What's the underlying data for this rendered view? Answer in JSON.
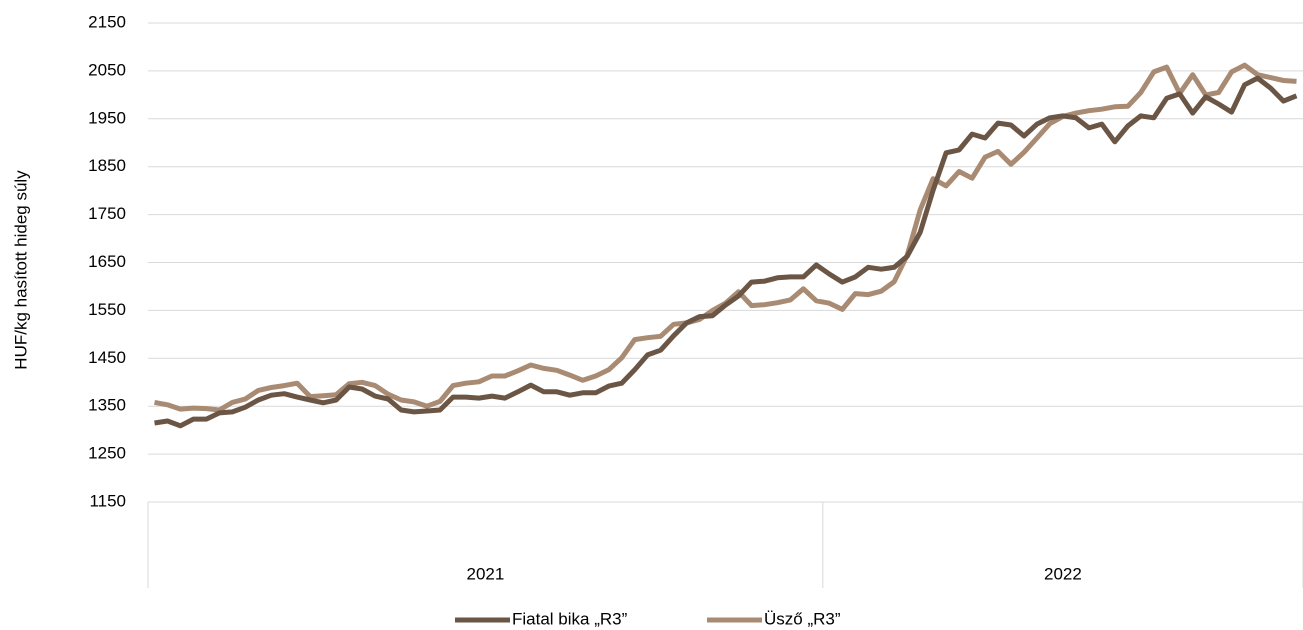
{
  "chart_data": {
    "type": "line",
    "y_label": "HUF/kg hasított hideg súly",
    "categories": [
      null,
      null,
      null,
      null,
      null,
      null,
      null,
      null,
      null,
      null,
      null,
      null,
      null,
      null,
      null,
      null,
      null,
      null,
      null,
      null,
      null,
      null,
      null,
      null,
      null,
      null,
      null,
      null,
      null,
      null,
      null,
      null,
      null,
      null,
      null,
      null,
      null,
      null,
      null,
      null,
      null,
      null,
      null,
      null,
      null,
      null,
      null,
      null,
      null,
      null,
      null,
      null,
      null,
      null,
      null,
      null,
      null,
      null,
      null,
      null,
      null,
      null,
      null,
      null,
      null,
      null,
      null,
      null,
      null,
      null,
      null,
      null,
      null,
      null,
      null,
      null,
      null,
      null,
      null,
      null,
      null,
      null,
      null,
      null,
      null,
      null,
      null,
      null,
      null
    ],
    "groups": [
      {
        "label": "2021",
        "count": 52
      },
      {
        "label": "2022",
        "count": 37
      }
    ],
    "series": [
      {
        "name": "Fiatal bika „R3”",
        "color": "#6b5646",
        "values": [
          1315,
          1319,
          1309,
          1323,
          1323,
          1336,
          1338,
          1348,
          1363,
          1373,
          1376,
          1369,
          1363,
          1357,
          1363,
          1390,
          1386,
          1371,
          1365,
          1342,
          1338,
          1340,
          1342,
          1369,
          1369,
          1367,
          1371,
          1367,
          1380,
          1394,
          1380,
          1380,
          1373,
          1378,
          1378,
          1392,
          1398,
          1426,
          1457,
          1467,
          1497,
          1524,
          1537,
          1539,
          1561,
          1580,
          1609,
          1611,
          1618,
          1620,
          1620,
          1645,
          1626,
          1609,
          1620,
          1640,
          1636,
          1640,
          1663,
          1713,
          1801,
          1879,
          1885,
          1918,
          1910,
          1941,
          1937,
          1914,
          1939,
          1952,
          1956,
          1952,
          1931,
          1939,
          1902,
          1935,
          1956,
          1952,
          1993,
          2002,
          1962,
          1996,
          1981,
          1964,
          2021,
          2035,
          2014,
          1987,
          1998
        ]
      },
      {
        "name": "Üsző „R3”",
        "color": "#a88b72",
        "values": [
          1358,
          1353,
          1344,
          1346,
          1345,
          1342,
          1358,
          1365,
          1383,
          1389,
          1393,
          1398,
          1370,
          1372,
          1374,
          1397,
          1400,
          1393,
          1375,
          1363,
          1359,
          1350,
          1360,
          1393,
          1398,
          1401,
          1413,
          1413,
          1424,
          1436,
          1429,
          1425,
          1415,
          1404,
          1413,
          1426,
          1451,
          1489,
          1493,
          1496,
          1521,
          1524,
          1531,
          1550,
          1565,
          1589,
          1560,
          1562,
          1566,
          1572,
          1595,
          1570,
          1565,
          1552,
          1585,
          1583,
          1590,
          1610,
          1665,
          1760,
          1825,
          1810,
          1840,
          1826,
          1870,
          1882,
          1855,
          1880,
          1910,
          1940,
          1955,
          1962,
          1967,
          1970,
          1975,
          1976,
          2005,
          2048,
          2058,
          2003,
          2042,
          2000,
          2005,
          2048,
          2062,
          2042,
          2036,
          2030,
          2028
        ]
      }
    ],
    "ylim": [
      1150,
      2150
    ],
    "yticks": [
      1150,
      1250,
      1350,
      1450,
      1550,
      1650,
      1750,
      1850,
      1950,
      2050,
      2150
    ],
    "grid": true,
    "legend": "bottom"
  }
}
